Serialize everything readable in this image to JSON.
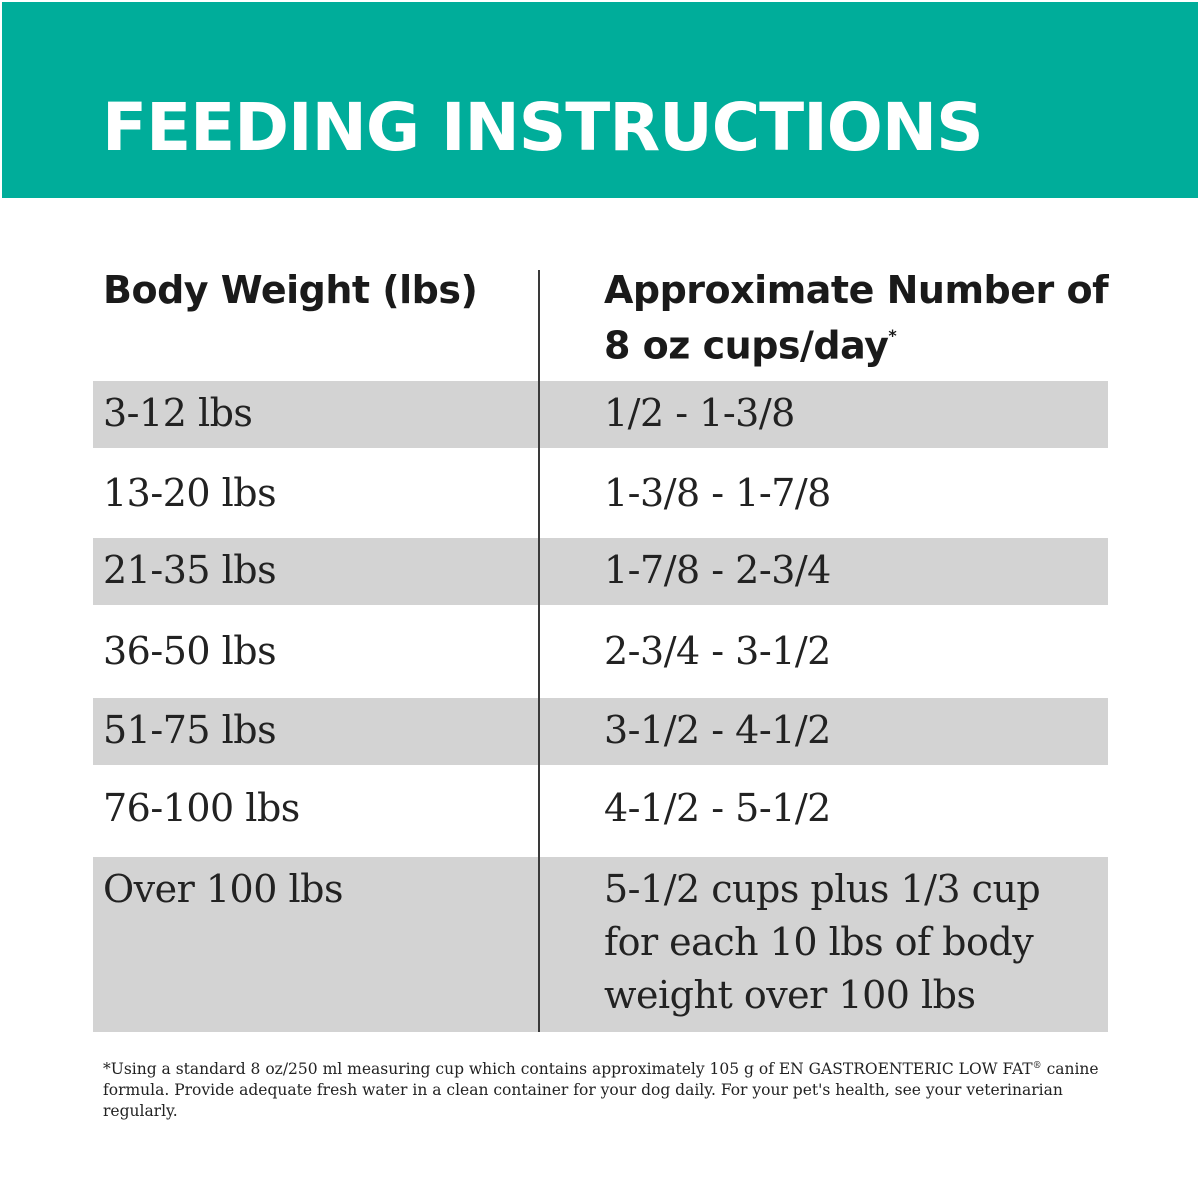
{
  "header": {
    "title": "FEEDING INSTRUCTIONS"
  },
  "table": {
    "column_headers": {
      "weight": "Body Weight (lbs)",
      "cups": "Approximate Number of 8 oz cups/day",
      "cups_marker": "*"
    },
    "rows": [
      {
        "weight": "3-12 lbs",
        "cups": "1/2 - 1-3/8"
      },
      {
        "weight": "13-20 lbs",
        "cups": "1-3/8 - 1-7/8"
      },
      {
        "weight": "21-35 lbs",
        "cups": "1-7/8 - 2-3/4"
      },
      {
        "weight": "36-50 lbs",
        "cups": "2-3/4 - 3-1/2"
      },
      {
        "weight": "51-75 lbs",
        "cups": "3-1/2 - 4-1/2"
      },
      {
        "weight": "76-100 lbs",
        "cups": "4-1/2 - 5-1/2"
      },
      {
        "weight": "Over 100 lbs",
        "cups": "5-1/2 cups plus 1/3 cup for each 10 lbs of body weight over 100 lbs"
      }
    ]
  },
  "footnote": {
    "part1": "*Using a standard 8 oz/250 ml measuring cup which contains approximately 105 g of EN GASTROENTERIC LOW FAT",
    "registered": "®",
    "part2": " canine formula. Provide adequate fresh water in a clean container for your dog daily. For your pet's health, see your veterinarian regularly."
  },
  "colors": {
    "banner": "#00ad9a",
    "row_shade": "#d3d3d3",
    "text": "#222222"
  }
}
